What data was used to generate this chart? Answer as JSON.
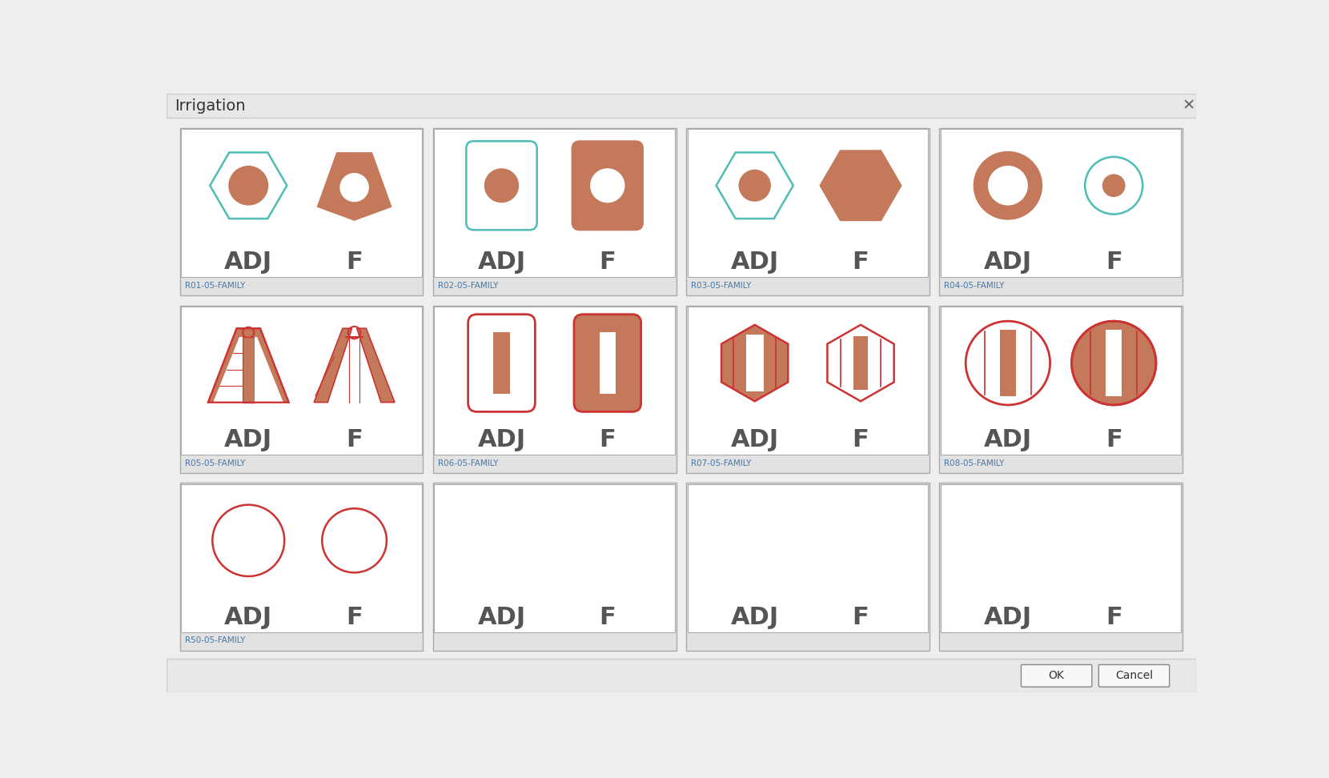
{
  "title": "Irrigation",
  "dialog_bg": "#eeeeee",
  "cell_bg": "#ffffff",
  "label_bg": "#e2e2e2",
  "copper": "#c47a5a",
  "teal": "#4dbdb5",
  "red": "#cc3333",
  "dark_text": "#555555",
  "label_color": "#4477aa",
  "border_color": "#aaaaaa",
  "families": [
    "R01-05-FAMILY",
    "R02-05-FAMILY",
    "R03-05-FAMILY",
    "R04-05-FAMILY",
    "R05-05-FAMILY",
    "R06-05-FAMILY",
    "R07-05-FAMILY",
    "R08-05-FAMILY",
    "R50-05-FAMILY",
    "",
    "",
    ""
  ]
}
